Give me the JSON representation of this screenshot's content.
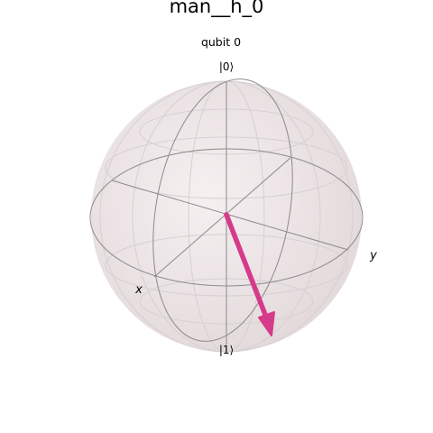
{
  "title": "man__h_0",
  "subtitle": "qubit 0",
  "labels": {
    "ket0": "|0⟩",
    "ket1": "|1⟩",
    "x": "x",
    "y": "y"
  },
  "sphere": {
    "fill_color": "#f1e9ea",
    "wire_color": "#8a8a8a",
    "grid_color": "#d3d3d3"
  },
  "state_vector": {
    "color": "#d63a8a"
  }
}
